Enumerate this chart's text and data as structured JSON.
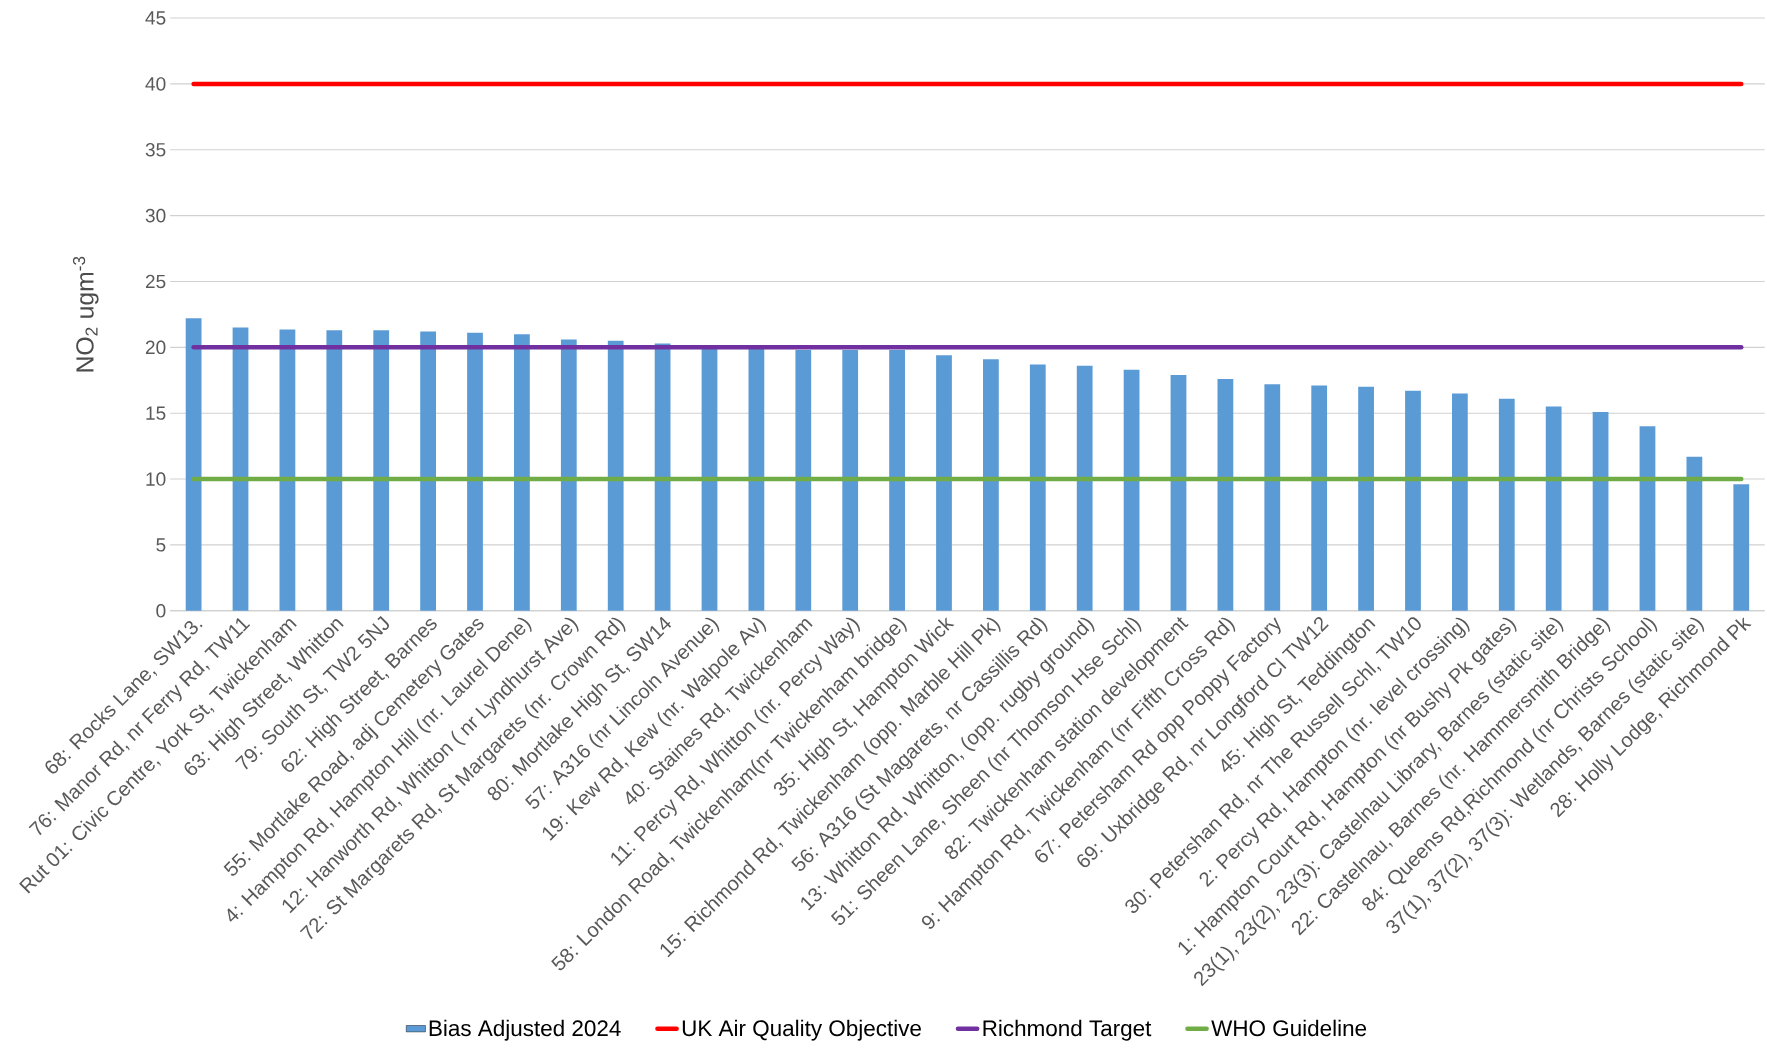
{
  "chart_data": {
    "type": "bar",
    "ylabel": "NO$_{2}$ ugm$^{-3}$",
    "categories": [
      "68: Rocks Lane, SW13.",
      "76: Manor Rd, nr Ferry Rd, TW11",
      "Rut  01: Civic Centre, York St, Twickenham",
      "63: High Street, Whitton",
      "79: South St, TW2 5NJ",
      "62: High Street, Barnes",
      "55: Mortlake Road, adj Cemetery Gates",
      "4: Hampton Rd, Hampton Hill (nr. Laurel Dene)",
      "12: Hanworth Rd, Whitton ( nr Lyndhurst Ave)",
      "72: St Margarets Rd, St Margarets (nr. Crown Rd)",
      "80: Mortlake High St, SW14",
      "57: A316 (nr Lincoln Avenue)",
      "19: Kew Rd, Kew (nr. Walpole Av)",
      "40: Staines Rd, Twickenham",
      "11: Percy Rd, Whitton (nr. Percy Way)",
      "58: London Road, Twickenham(nr Twickenham bridge)",
      "35: High St, Hampton Wick",
      "15: Richmond Rd, Twickenham (opp. Marble Hill Pk)",
      "56: A316 (St Magarets, nr Cassillis Rd)",
      "13: Whitton Rd, Whitton, (opp. rugby ground)",
      "51: Sheen Lane, Sheen (nr Thomson Hse Schl)",
      "82: Twickenham station development",
      "9: Hampton Rd, Twickenham (nr Fifth Cross Rd)",
      "67: Petersham Rd opp Poppy Factory",
      "69: Uxbridge Rd, nr Longford Cl TW12",
      "45: High St, Teddington",
      "30: Petershan Rd, nr The Russell Schl, TW10",
      "2: Percy Rd, Hampton (nr. level crossing)",
      "1: Hampton Court Rd, Hampton (nr Bushy Pk gates)",
      "23(1), 23(2), 23(3): Castelnau Library, Barnes (static site)",
      "22: Castelnau, Barnes (nr. Hammersmith Bridge)",
      "84: Queens Rd,Richmond (nr Christs School)",
      "37(1), 37(2), 37(3): Wetlands, Barnes (static site)",
      "28: Holly Lodge, Richmond Pk"
    ],
    "series": [
      {
        "name": "Bias Adjusted 2024",
        "color": "#5b9bd5",
        "values": [
          22.2,
          21.5,
          21.35,
          21.3,
          21.3,
          21.2,
          21.1,
          21.0,
          20.6,
          20.5,
          20.3,
          19.9,
          19.9,
          19.8,
          19.8,
          19.8,
          19.4,
          19.1,
          18.7,
          18.6,
          18.3,
          17.9,
          17.6,
          17.2,
          17.1,
          17.0,
          16.7,
          16.5,
          16.1,
          15.5,
          15.1,
          14.0,
          11.7,
          9.6
        ]
      },
      {
        "name": "UK Air Quality Objective",
        "type": "line",
        "color": "#ff0000",
        "values": [
          40,
          40,
          40,
          40,
          40,
          40,
          40,
          40,
          40,
          40,
          40,
          40,
          40,
          40,
          40,
          40,
          40,
          40,
          40,
          40,
          40,
          40,
          40,
          40,
          40,
          40,
          40,
          40,
          40,
          40,
          40,
          40,
          40,
          40
        ]
      },
      {
        "name": "Richmond Target",
        "type": "line",
        "color": "#7030a0",
        "values": [
          20,
          20,
          20,
          20,
          20,
          20,
          20,
          20,
          20,
          20,
          20,
          20,
          20,
          20,
          20,
          20,
          20,
          20,
          20,
          20,
          20,
          20,
          20,
          20,
          20,
          20,
          20,
          20,
          20,
          20,
          20,
          20,
          20,
          20
        ]
      },
      {
        "name": "WHO Guideline",
        "type": "line",
        "color": "#70ad47",
        "values": [
          10,
          10,
          10,
          10,
          10,
          10,
          10,
          10,
          10,
          10,
          10,
          10,
          10,
          10,
          10,
          10,
          10,
          10,
          10,
          10,
          10,
          10,
          10,
          10,
          10,
          10,
          10,
          10,
          10,
          10,
          10,
          10,
          10,
          10
        ]
      }
    ],
    "ylim": [
      0,
      45
    ],
    "yticks": [
      0,
      5,
      10,
      15,
      20,
      25,
      30,
      35,
      40,
      45
    ],
    "grid": "y",
    "legend": "bottom",
    "marker": "none",
    "line_style": "solid"
  }
}
